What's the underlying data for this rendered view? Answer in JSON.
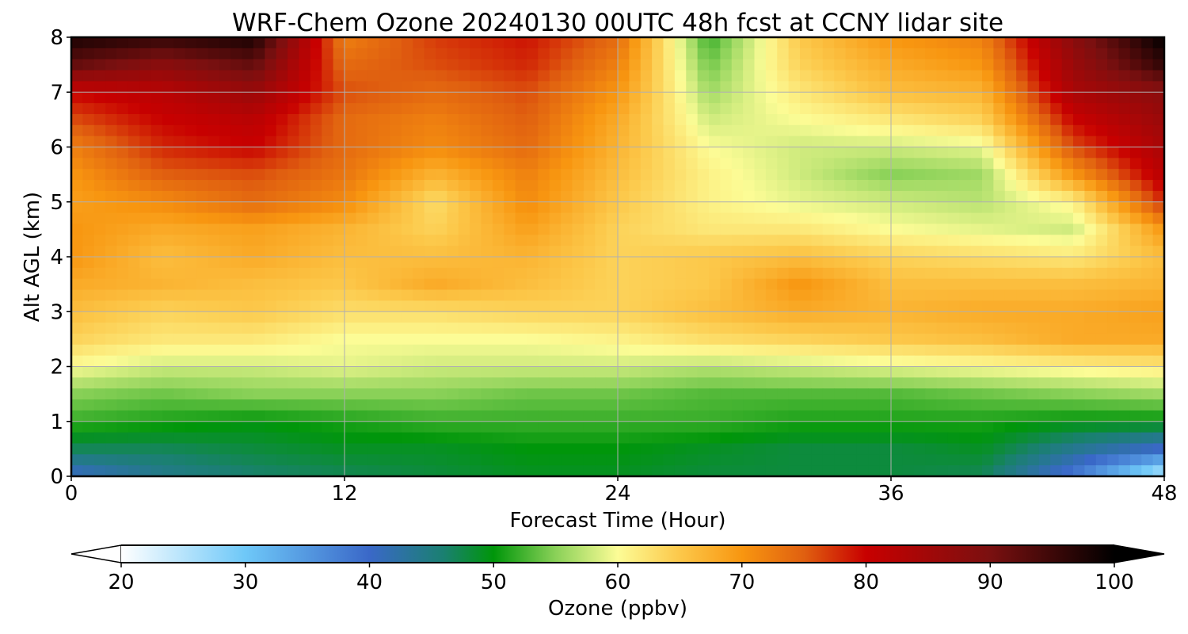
{
  "chart_data": {
    "type": "heatmap",
    "title": "WRF-Chem Ozone  20240130 00UTC 48h fcst at CCNY lidar site",
    "xlabel": "Forecast Time (Hour)",
    "ylabel": "Alt AGL (km)",
    "xlim": [
      0,
      48
    ],
    "ylim": [
      0,
      8
    ],
    "x_ticks": [
      0,
      12,
      24,
      36,
      48
    ],
    "y_ticks": [
      0,
      1,
      2,
      3,
      4,
      5,
      6,
      7,
      8
    ],
    "grid": true,
    "x_hours": [
      0,
      4,
      8,
      12,
      16,
      20,
      24,
      28,
      32,
      36,
      40,
      44,
      48
    ],
    "y_km": [
      0,
      0.5,
      1,
      1.5,
      2,
      2.5,
      3,
      3.5,
      4,
      4.5,
      5,
      5.5,
      6,
      6.5,
      7,
      7.5,
      8
    ],
    "ozone_ppbv": [
      [
        40,
        44,
        46,
        47,
        48,
        49,
        49,
        48,
        48,
        48,
        47,
        38,
        24
      ],
      [
        47,
        47,
        48,
        49,
        49,
        50,
        50,
        49,
        48,
        48,
        49,
        44,
        40
      ],
      [
        52,
        51,
        50,
        51,
        52,
        52,
        52,
        52,
        51,
        51,
        51,
        50,
        50
      ],
      [
        55,
        54,
        55,
        55,
        55,
        54,
        54,
        53,
        53,
        53,
        54,
        55,
        56
      ],
      [
        60,
        58,
        58,
        59,
        58,
        58,
        58,
        57,
        58,
        59,
        60,
        61,
        62
      ],
      [
        64,
        62,
        62,
        60,
        60,
        60,
        61,
        63,
        64,
        65,
        66,
        68,
        68
      ],
      [
        66,
        64,
        65,
        63,
        63,
        64,
        64,
        66,
        68,
        67,
        68,
        68,
        69
      ],
      [
        68,
        67,
        66,
        65,
        68,
        66,
        64,
        65,
        70,
        66,
        66,
        66,
        67
      ],
      [
        70,
        66,
        68,
        66,
        66,
        67,
        64,
        65,
        66,
        64,
        63,
        62,
        66
      ],
      [
        70,
        68,
        69,
        67,
        64,
        69,
        64,
        62,
        62,
        60,
        59,
        58,
        70
      ],
      [
        69,
        71,
        74,
        71,
        63,
        71,
        65,
        61,
        59,
        58,
        57,
        61,
        78
      ],
      [
        70,
        75,
        76,
        73,
        67,
        72,
        66,
        61,
        58,
        55,
        56,
        70,
        82
      ],
      [
        72,
        78,
        80,
        74,
        71,
        74,
        67,
        60,
        58,
        58,
        59,
        76,
        84
      ],
      [
        76,
        80,
        82,
        74,
        72,
        75,
        68,
        58,
        60,
        62,
        64,
        80,
        86
      ],
      [
        80,
        82,
        86,
        76,
        74,
        76,
        70,
        56,
        62,
        66,
        67,
        84,
        88
      ],
      [
        92,
        88,
        92,
        74,
        76,
        78,
        72,
        54,
        64,
        68,
        70,
        86,
        96
      ],
      [
        98,
        96,
        98,
        72,
        77,
        79,
        74,
        52,
        65,
        70,
        72,
        88,
        100
      ]
    ],
    "colorbar": {
      "label": "Ozone  (ppbv)",
      "min": 20,
      "max": 100,
      "ticks": [
        20,
        30,
        40,
        50,
        60,
        70,
        80,
        90,
        100
      ],
      "extend": "both",
      "color_stops": [
        {
          "v": 20,
          "c": "#ffffff"
        },
        {
          "v": 30,
          "c": "#6ec8f8"
        },
        {
          "v": 40,
          "c": "#3a68c8"
        },
        {
          "v": 46,
          "c": "#1a8070"
        },
        {
          "v": 50,
          "c": "#00960a"
        },
        {
          "v": 55,
          "c": "#8ad158"
        },
        {
          "v": 60,
          "c": "#fcfc96"
        },
        {
          "v": 65,
          "c": "#fcc84a"
        },
        {
          "v": 70,
          "c": "#f89610"
        },
        {
          "v": 75,
          "c": "#e06010"
        },
        {
          "v": 80,
          "c": "#c80000"
        },
        {
          "v": 90,
          "c": "#7a1010"
        },
        {
          "v": 100,
          "c": "#000000"
        }
      ]
    }
  }
}
